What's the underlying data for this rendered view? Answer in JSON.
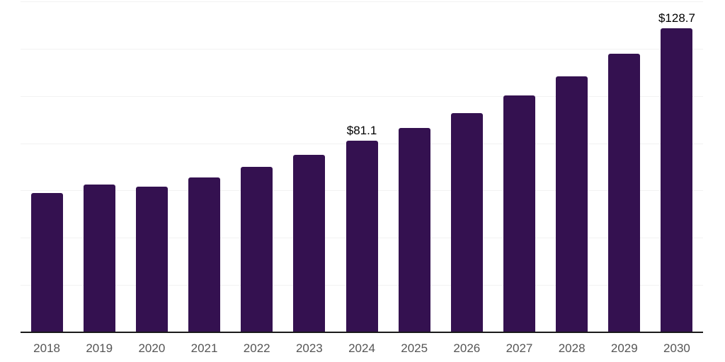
{
  "chart_data": {
    "type": "bar",
    "title": "",
    "xlabel": "",
    "ylabel": "",
    "categories": [
      "2018",
      "2019",
      "2020",
      "2021",
      "2022",
      "2023",
      "2024",
      "2025",
      "2026",
      "2027",
      "2028",
      "2029",
      "2030"
    ],
    "values": [
      59.0,
      62.5,
      61.5,
      65.4,
      70.1,
      75.1,
      81.1,
      86.4,
      92.7,
      100.1,
      108.3,
      118.0,
      128.7
    ],
    "data_labels": {
      "2024": "$81.1",
      "2030": "$128.7"
    },
    "ylim": [
      0,
      140
    ],
    "gridline_step": 20,
    "grid": "horizontal",
    "legend_position": "none",
    "colors": {
      "bar": "#341150",
      "axis_line": "#1a1a1a",
      "gridline": "#f2f2f2",
      "tick_label": "#555555",
      "data_label": "#000000",
      "background": "#ffffff"
    }
  }
}
